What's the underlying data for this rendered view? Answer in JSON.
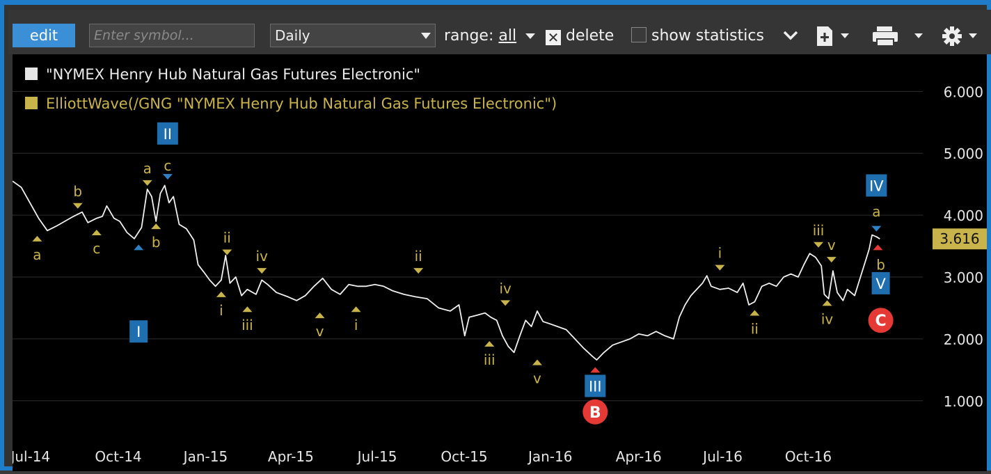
{
  "toolbar": {
    "edit_label": "edit",
    "symbol_placeholder": "Enter symbol...",
    "period_value": "Daily",
    "range_label": "range:",
    "range_value": "all",
    "delete_label": "delete",
    "show_statistics_label": "show statistics"
  },
  "legend": {
    "price_label": "\"NYMEX Henry Hub Natural Gas Futures Electronic\"",
    "study_label": "ElliottWave(/GNG \"NYMEX Henry Hub Natural Gas Futures Electronic\")"
  },
  "colors": {
    "price_line": "#f0f0f0",
    "wave_label": "#c8b44a",
    "major_wave_bg": "#1f6fb0",
    "red_marker": "#e53935",
    "grid": "#2e2e2e",
    "price_badge": "#c8b44a"
  },
  "chart_data": {
    "type": "line",
    "x_ticks": [
      {
        "t": 0.12,
        "label": "Jul-14"
      },
      {
        "t": 3.15,
        "label": "Oct-14"
      },
      {
        "t": 6.16,
        "label": "Jan-15"
      },
      {
        "t": 9.1,
        "label": "Apr-15"
      },
      {
        "t": 12.08,
        "label": "Jul-15"
      },
      {
        "t": 15.08,
        "label": "Oct-15"
      },
      {
        "t": 18.05,
        "label": "Jan-16"
      },
      {
        "t": 21.1,
        "label": "Apr-16"
      },
      {
        "t": 24.0,
        "label": "Jul-16"
      },
      {
        "t": 26.95,
        "label": "Oct-16"
      }
    ],
    "y_ticks": [
      {
        "v": 1.0,
        "label": "1.000"
      },
      {
        "v": 2.0,
        "label": "2.000"
      },
      {
        "v": 3.0,
        "label": "3.000"
      },
      {
        "v": 4.0,
        "label": "4.000"
      },
      {
        "v": 5.0,
        "label": "5.000"
      },
      {
        "v": 6.0,
        "label": "6.000"
      }
    ],
    "ylim": [
      0.3,
      6.6
    ],
    "xlim": [
      -0.5,
      30.9
    ],
    "last_price": 3.616,
    "last_price_label": "3.616",
    "series": [
      {
        "points": [
          [
            -0.5,
            4.55
          ],
          [
            -0.2,
            4.45
          ],
          [
            0.1,
            4.2
          ],
          [
            0.4,
            3.95
          ],
          [
            0.7,
            3.75
          ],
          [
            1.0,
            3.82
          ],
          [
            1.3,
            3.9
          ],
          [
            1.6,
            3.98
          ],
          [
            1.9,
            4.05
          ],
          [
            2.1,
            3.88
          ],
          [
            2.4,
            3.95
          ],
          [
            2.6,
            3.98
          ],
          [
            2.75,
            4.15
          ],
          [
            3.0,
            3.95
          ],
          [
            3.2,
            3.9
          ],
          [
            3.45,
            3.72
          ],
          [
            3.7,
            3.62
          ],
          [
            3.95,
            3.8
          ],
          [
            4.15,
            4.42
          ],
          [
            4.3,
            4.3
          ],
          [
            4.45,
            3.9
          ],
          [
            4.6,
            4.35
          ],
          [
            4.75,
            4.48
          ],
          [
            4.9,
            4.2
          ],
          [
            5.05,
            4.3
          ],
          [
            5.25,
            3.85
          ],
          [
            5.5,
            3.78
          ],
          [
            5.75,
            3.6
          ],
          [
            5.9,
            3.2
          ],
          [
            6.1,
            3.08
          ],
          [
            6.3,
            2.95
          ],
          [
            6.5,
            2.85
          ],
          [
            6.7,
            2.95
          ],
          [
            6.85,
            3.35
          ],
          [
            7.0,
            2.9
          ],
          [
            7.2,
            3.0
          ],
          [
            7.4,
            2.7
          ],
          [
            7.6,
            2.8
          ],
          [
            7.9,
            2.72
          ],
          [
            8.1,
            2.95
          ],
          [
            8.3,
            2.88
          ],
          [
            8.6,
            2.75
          ],
          [
            9.0,
            2.68
          ],
          [
            9.3,
            2.62
          ],
          [
            9.6,
            2.7
          ],
          [
            9.9,
            2.85
          ],
          [
            10.2,
            2.98
          ],
          [
            10.5,
            2.8
          ],
          [
            10.8,
            2.72
          ],
          [
            11.1,
            2.88
          ],
          [
            11.4,
            2.85
          ],
          [
            11.7,
            2.85
          ],
          [
            12.0,
            2.88
          ],
          [
            12.3,
            2.85
          ],
          [
            12.6,
            2.78
          ],
          [
            13.0,
            2.72
          ],
          [
            13.4,
            2.68
          ],
          [
            13.8,
            2.65
          ],
          [
            14.2,
            2.5
          ],
          [
            14.6,
            2.45
          ],
          [
            14.9,
            2.55
          ],
          [
            15.1,
            2.05
          ],
          [
            15.25,
            2.35
          ],
          [
            15.5,
            2.38
          ],
          [
            15.8,
            2.42
          ],
          [
            16.0,
            2.35
          ],
          [
            16.2,
            2.3
          ],
          [
            16.4,
            2.05
          ],
          [
            16.6,
            1.88
          ],
          [
            16.8,
            1.78
          ],
          [
            17.0,
            2.05
          ],
          [
            17.2,
            2.3
          ],
          [
            17.4,
            2.2
          ],
          [
            17.6,
            2.45
          ],
          [
            17.8,
            2.28
          ],
          [
            18.0,
            2.25
          ],
          [
            18.3,
            2.2
          ],
          [
            18.6,
            2.15
          ],
          [
            18.9,
            2.0
          ],
          [
            19.2,
            1.85
          ],
          [
            19.5,
            1.72
          ],
          [
            19.65,
            1.66
          ],
          [
            19.9,
            1.78
          ],
          [
            20.2,
            1.9
          ],
          [
            20.5,
            1.95
          ],
          [
            20.8,
            2.0
          ],
          [
            21.1,
            2.08
          ],
          [
            21.4,
            2.05
          ],
          [
            21.7,
            2.12
          ],
          [
            22.0,
            2.05
          ],
          [
            22.3,
            2.0
          ],
          [
            22.5,
            2.35
          ],
          [
            22.7,
            2.55
          ],
          [
            22.9,
            2.7
          ],
          [
            23.1,
            2.8
          ],
          [
            23.3,
            2.9
          ],
          [
            23.45,
            3.02
          ],
          [
            23.6,
            2.85
          ],
          [
            23.9,
            2.8
          ],
          [
            24.2,
            2.82
          ],
          [
            24.5,
            2.75
          ],
          [
            24.7,
            2.9
          ],
          [
            24.9,
            2.55
          ],
          [
            25.1,
            2.6
          ],
          [
            25.35,
            2.85
          ],
          [
            25.6,
            2.9
          ],
          [
            25.85,
            2.85
          ],
          [
            26.1,
            3.0
          ],
          [
            26.35,
            3.05
          ],
          [
            26.6,
            3.0
          ],
          [
            26.8,
            3.2
          ],
          [
            27.0,
            3.38
          ],
          [
            27.2,
            3.32
          ],
          [
            27.4,
            3.18
          ],
          [
            27.5,
            2.72
          ],
          [
            27.65,
            2.65
          ],
          [
            27.8,
            3.1
          ],
          [
            27.95,
            2.75
          ],
          [
            28.15,
            2.62
          ],
          [
            28.3,
            2.8
          ],
          [
            28.55,
            2.7
          ],
          [
            28.75,
            3.0
          ],
          [
            28.95,
            3.3
          ],
          [
            29.05,
            3.45
          ],
          [
            29.15,
            3.68
          ],
          [
            29.3,
            3.65
          ],
          [
            29.42,
            3.616
          ]
        ]
      }
    ],
    "wave_labels": [
      {
        "text": "a",
        "t": 0.35,
        "v": 3.62,
        "dir": "up"
      },
      {
        "text": "b",
        "t": 1.75,
        "v": 4.15,
        "dir": "down"
      },
      {
        "text": "c",
        "t": 2.4,
        "v": 3.72,
        "dir": "up"
      },
      {
        "text": "a",
        "t": 4.15,
        "v": 4.52,
        "dir": "down"
      },
      {
        "text": "b",
        "t": 4.45,
        "v": 3.82,
        "dir": "up"
      },
      {
        "text": "ii",
        "t": 6.9,
        "v": 3.4,
        "dir": "down"
      },
      {
        "text": "i",
        "t": 6.7,
        "v": 2.72,
        "dir": "up"
      },
      {
        "text": "iv",
        "t": 8.1,
        "v": 3.1,
        "dir": "down"
      },
      {
        "text": "iii",
        "t": 7.6,
        "v": 2.48,
        "dir": "up"
      },
      {
        "text": "v",
        "t": 10.1,
        "v": 2.38,
        "dir": "up"
      },
      {
        "text": "i",
        "t": 11.35,
        "v": 2.48,
        "dir": "up"
      },
      {
        "text": "ii",
        "t": 13.5,
        "v": 3.1,
        "dir": "down"
      },
      {
        "text": "iv",
        "t": 16.5,
        "v": 2.58,
        "dir": "down"
      },
      {
        "text": "iii",
        "t": 15.95,
        "v": 1.92,
        "dir": "up"
      },
      {
        "text": "v",
        "t": 17.6,
        "v": 1.62,
        "dir": "up"
      },
      {
        "text": "i",
        "t": 23.9,
        "v": 3.15,
        "dir": "down"
      },
      {
        "text": "ii",
        "t": 25.1,
        "v": 2.42,
        "dir": "up"
      },
      {
        "text": "iii",
        "t": 27.3,
        "v": 3.52,
        "dir": "down"
      },
      {
        "text": "v",
        "t": 27.75,
        "v": 3.28,
        "dir": "down"
      },
      {
        "text": "iv",
        "t": 27.6,
        "v": 2.58,
        "dir": "up"
      }
    ],
    "small_markers": [
      {
        "text": "c",
        "t": 4.85,
        "v": 4.62,
        "dir": "down",
        "color": "#2f7fc4"
      },
      {
        "text": "I",
        "t": 3.85,
        "v": 3.48,
        "dir": "up",
        "color": "#2f7fc4"
      },
      {
        "text": "a",
        "t": 29.3,
        "v": 3.78,
        "dir": "down",
        "color": "#2f7fc4"
      },
      {
        "text": "b",
        "t": 29.35,
        "v": 3.48,
        "dir": "up",
        "color": "#e53935"
      }
    ],
    "major_waves": [
      {
        "text": "II",
        "t": 4.85,
        "v": 5.32
      },
      {
        "text": "I",
        "t": 3.85,
        "v": 2.12
      },
      {
        "text": "III",
        "t": 19.6,
        "v": 1.24
      },
      {
        "text": "IV",
        "t": 29.3,
        "v": 4.48
      },
      {
        "text": "V",
        "t": 29.45,
        "v": 2.9
      }
    ],
    "circle_markers": [
      {
        "text": "B",
        "t": 19.6,
        "v": 0.82
      },
      {
        "text": "C",
        "t": 29.45,
        "v": 2.3
      }
    ]
  }
}
